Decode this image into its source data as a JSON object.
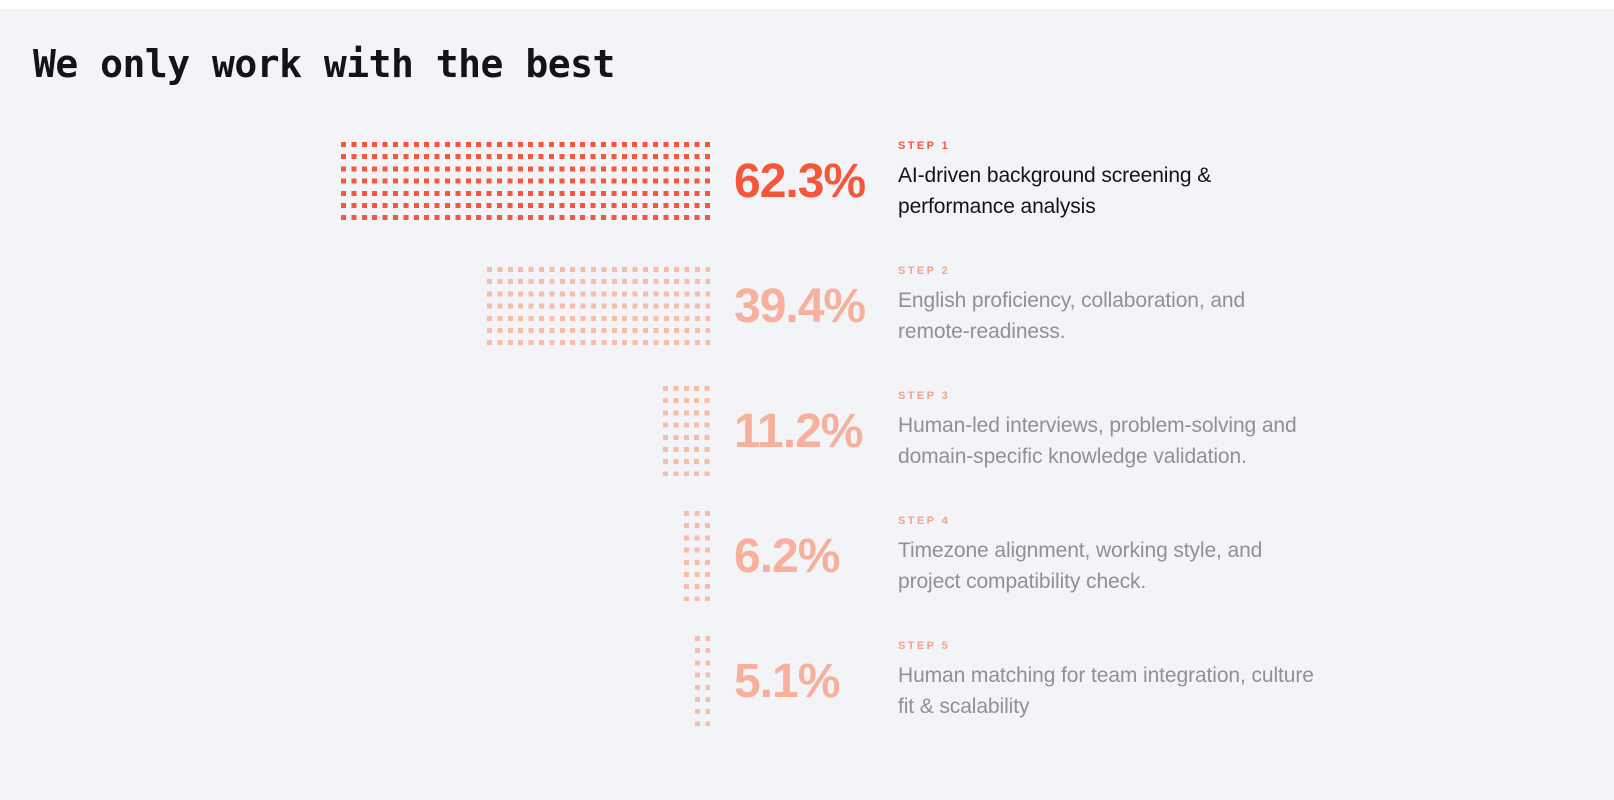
{
  "title": "We only work with the best",
  "palette": {
    "background": "#f3f4f7",
    "top_strip": "#ffffff",
    "accent_orange": "#f4573a",
    "pale_salmon_dots": "#f8bda9",
    "pale_salmon_percent": "#f6b09c",
    "pale_salmon_label": "#f0a38c",
    "text_dark": "#141418",
    "text_gray": "#909095"
  },
  "steps": [
    {
      "label": "STEP 1",
      "percent": "62.3%",
      "desc_lines": [
        "AI-driven background screening &",
        "performance analysis"
      ],
      "dot_cols": 36,
      "dot_rows": 7,
      "dot_color": "#f4573a",
      "emphasized": true
    },
    {
      "label": "STEP 2",
      "percent": "39.4%",
      "desc_lines": [
        "English proficiency, collaboration, and",
        "remote-readiness."
      ],
      "dot_cols": 22,
      "dot_rows": 7,
      "dot_color": "#f8bda9",
      "emphasized": false
    },
    {
      "label": "STEP 3",
      "percent": "11.2%",
      "desc_lines": [
        "Human-led interviews, problem-solving and",
        "domain-specific knowledge validation."
      ],
      "dot_cols": 5,
      "dot_rows": 8,
      "dot_color": "#f8bda9",
      "emphasized": false
    },
    {
      "label": "STEP 4",
      "percent": "6.2%",
      "desc_lines": [
        "Timezone alignment, working style, and",
        "project compatibility check."
      ],
      "dot_cols": 3,
      "dot_rows": 8,
      "dot_color": "#f8bda9",
      "emphasized": false
    },
    {
      "label": "STEP 5",
      "percent": "5.1%",
      "desc_lines": [
        "Human matching for team integration, culture",
        "fit & scalability"
      ],
      "dot_cols": 2,
      "dot_rows": 8,
      "dot_color": "#f8bda9",
      "emphasized": false
    }
  ],
  "chart_data": {
    "type": "bar",
    "subtype": "dot-matrix-funnel",
    "orientation": "horizontal",
    "title": "We only work with the best",
    "categories": [
      "STEP 1",
      "STEP 2",
      "STEP 3",
      "STEP 4",
      "STEP 5"
    ],
    "values": [
      62.3,
      39.4,
      11.2,
      6.2,
      5.1
    ],
    "unit": "%",
    "bar_alignment": "right",
    "annotations": [
      "AI-driven background screening & performance analysis",
      "English proficiency, collaboration, and remote-readiness.",
      "Human-led interviews, problem-solving and domain-specific knowledge validation.",
      "Timezone alignment, working style, and project compatibility check.",
      "Human matching for team integration, culture fit & scalability"
    ],
    "legend": "none",
    "grid": false
  }
}
